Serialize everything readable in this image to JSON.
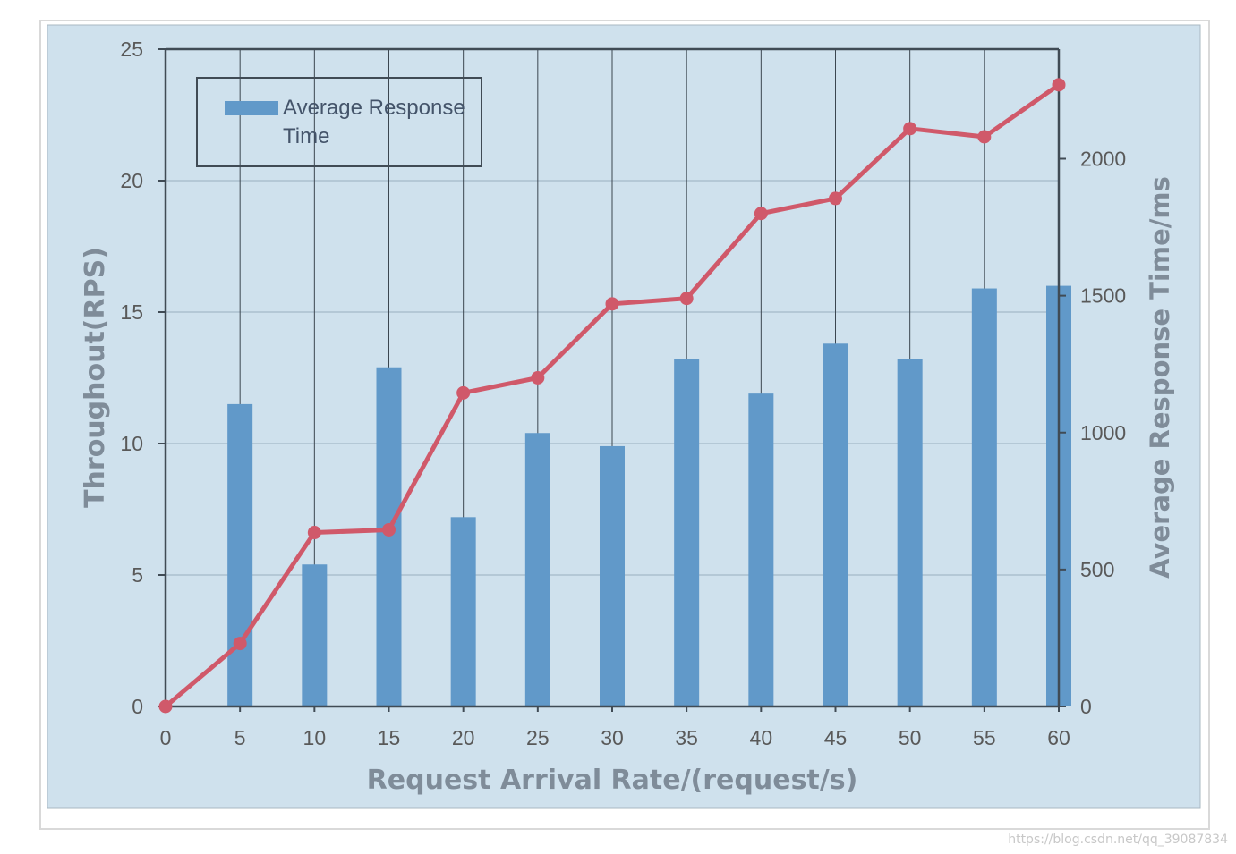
{
  "chart_data": {
    "type": "bar+line",
    "title": "",
    "xlabel": "Request Arrival Rate/(request/s)",
    "ylabel_left": "Throughout(RPS)",
    "ylabel_right": "Average Response Time/ms",
    "x": [
      0,
      5,
      10,
      15,
      20,
      25,
      30,
      35,
      40,
      45,
      50,
      55,
      60
    ],
    "x_tick_labels": [
      "0",
      "5",
      "10",
      "15",
      "20",
      "25",
      "30",
      "35",
      "40",
      "45",
      "50",
      "55",
      "60"
    ],
    "y_left_ticks": [
      "0",
      "5",
      "10",
      "15",
      "20",
      "25"
    ],
    "y_left_lim": [
      0,
      25
    ],
    "y_right_ticks": [
      "0",
      "500",
      "1000",
      "1500",
      "2000"
    ],
    "y_right_lim": [
      0,
      2400
    ],
    "grid": "horizontal and vertical",
    "legend_position": "top-left",
    "series": [
      {
        "name": "Average Response Time",
        "type": "bar",
        "axis": "left",
        "color": "#6199c9",
        "x": [
          5,
          10,
          15,
          20,
          25,
          30,
          35,
          40,
          45,
          50,
          55,
          60
        ],
        "values": [
          11.5,
          5.4,
          12.9,
          7.2,
          10.4,
          9.9,
          13.2,
          11.9,
          13.8,
          13.2,
          15.9,
          16.0
        ]
      },
      {
        "type": "line",
        "axis": "right",
        "color": "#d0596a",
        "x": [
          0,
          5,
          10,
          15,
          20,
          25,
          30,
          35,
          40,
          45,
          50,
          55,
          60
        ],
        "values": [
          0,
          230,
          635,
          645,
          1145,
          1200,
          1470,
          1490,
          1800,
          1855,
          2110,
          2080,
          2270
        ]
      }
    ]
  },
  "watermark": "https://blog.csdn.net/qq_39087834",
  "colors": {
    "plot_background": "#cfe1ed",
    "axis": "#404b55",
    "gridline": "#b4c8d6"
  }
}
